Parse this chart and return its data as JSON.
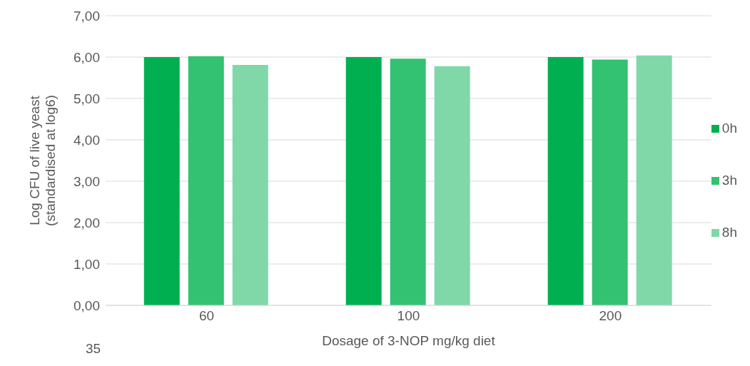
{
  "chart_data": {
    "type": "bar",
    "xlabel": "Dosage of 3-NOP mg/kg diet",
    "ylabel": "Log CFU of live yeast\n(standardised at log6)",
    "categories": [
      "60",
      "100",
      "200"
    ],
    "series": [
      {
        "name": "0h",
        "color": "#00b050",
        "values": [
          6.0,
          6.0,
          6.0
        ]
      },
      {
        "name": "3h",
        "color": "#33c172",
        "values": [
          6.02,
          5.96,
          5.94
        ]
      },
      {
        "name": "8h",
        "color": "#80d8a8",
        "values": [
          5.81,
          5.78,
          6.04
        ]
      }
    ],
    "ylim": [
      0,
      7
    ],
    "yticks": [
      {
        "value": 0,
        "label": "0,00"
      },
      {
        "value": 1,
        "label": "1,00"
      },
      {
        "value": 2,
        "label": "2,00"
      },
      {
        "value": 3,
        "label": "3,00"
      },
      {
        "value": 4,
        "label": "4,00"
      },
      {
        "value": 5,
        "label": "5,00"
      },
      {
        "value": 6,
        "label": "6,00"
      },
      {
        "value": 7,
        "label": "7,00"
      }
    ],
    "grid": "y",
    "legend": "right",
    "annotations": [
      "35"
    ]
  }
}
